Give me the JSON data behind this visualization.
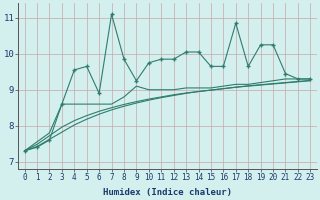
{
  "xlabel": "Humidex (Indice chaleur)",
  "bg_color": "#d4f0ee",
  "grid_color": "#c8a8a8",
  "line_color": "#2e7d6e",
  "xlim": [
    -0.5,
    23.5
  ],
  "ylim": [
    6.8,
    11.4
  ],
  "xticks": [
    0,
    1,
    2,
    3,
    4,
    5,
    6,
    7,
    8,
    9,
    10,
    11,
    12,
    13,
    14,
    15,
    16,
    17,
    18,
    19,
    20,
    21,
    22,
    23
  ],
  "yticks": [
    7,
    8,
    9,
    10,
    11
  ],
  "main_y": [
    7.3,
    7.4,
    7.6,
    8.6,
    9.55,
    9.65,
    8.9,
    11.1,
    9.85,
    9.25,
    9.75,
    9.85,
    9.85,
    10.05,
    10.05,
    9.65,
    9.65,
    10.85,
    9.65,
    10.25,
    10.25,
    9.45,
    9.3,
    9.3
  ],
  "trend1_y": [
    7.3,
    7.55,
    7.8,
    8.6,
    8.6,
    8.6,
    8.6,
    8.6,
    8.8,
    9.1,
    9.0,
    9.0,
    9.0,
    9.05,
    9.05,
    9.05,
    9.1,
    9.15,
    9.15,
    9.2,
    9.25,
    9.3,
    9.3,
    9.3
  ],
  "trend2_y": [
    7.3,
    7.42,
    7.62,
    7.82,
    8.02,
    8.18,
    8.32,
    8.44,
    8.54,
    8.63,
    8.71,
    8.78,
    8.84,
    8.9,
    8.95,
    8.99,
    9.03,
    9.07,
    9.11,
    9.14,
    9.17,
    9.2,
    9.23,
    9.26
  ],
  "trend3_y": [
    7.3,
    7.48,
    7.72,
    7.96,
    8.14,
    8.28,
    8.4,
    8.5,
    8.59,
    8.67,
    8.74,
    8.8,
    8.86,
    8.91,
    8.95,
    8.99,
    9.03,
    9.07,
    9.1,
    9.13,
    9.16,
    9.19,
    9.22,
    9.25
  ]
}
